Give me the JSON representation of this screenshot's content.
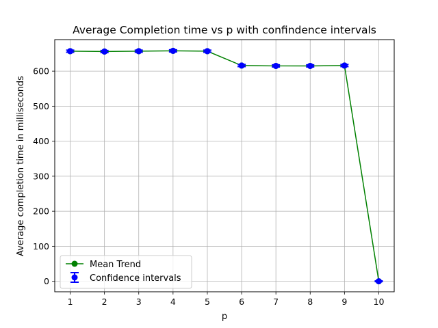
{
  "chart_data": {
    "type": "line",
    "title": "Average Completion time vs p with confindence intervals",
    "xlabel": "p",
    "ylabel": "Average completion time in milliseconds",
    "x": [
      1,
      2,
      3,
      4,
      5,
      6,
      7,
      8,
      9,
      10
    ],
    "xlim": [
      0.55,
      10.45
    ],
    "ylim": [
      -30,
      690
    ],
    "xticks": [
      1,
      2,
      3,
      4,
      5,
      6,
      7,
      8,
      9,
      10
    ],
    "yticks": [
      0,
      100,
      200,
      300,
      400,
      500,
      600
    ],
    "grid": true,
    "legend_position": "lower-left",
    "series": [
      {
        "name": "Mean Trend",
        "kind": "line-marker",
        "color": "#008000",
        "values": [
          657,
          656,
          657,
          658,
          657,
          616,
          615,
          615,
          616,
          0
        ]
      },
      {
        "name": "Confidence intervals",
        "kind": "errorbar",
        "color": "#0000ff",
        "values": [
          657,
          656,
          657,
          658,
          657,
          616,
          615,
          615,
          616,
          0
        ],
        "error": [
          3,
          3,
          3,
          3,
          3,
          3,
          3,
          3,
          3,
          1
        ]
      }
    ]
  }
}
